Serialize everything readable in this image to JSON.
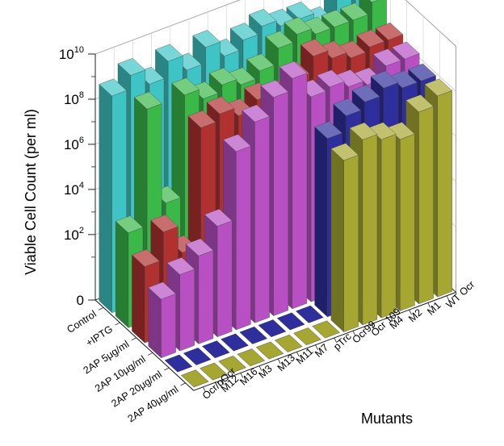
{
  "chart_data": {
    "type": "bar",
    "subtype": "3d-bar",
    "ylabel": "Viable Cell Count (per ml)",
    "xlabel": "Mutants",
    "yscale": "log",
    "ylim": [
      0,
      10000000000
    ],
    "grid": true,
    "legend": "none",
    "y_ticks": [
      {
        "base": "0",
        "exp": ""
      },
      {
        "base": "10",
        "exp": "2"
      },
      {
        "base": "10",
        "exp": "4"
      },
      {
        "base": "10",
        "exp": "6"
      },
      {
        "base": "10",
        "exp": "8"
      },
      {
        "base": "10",
        "exp": "10"
      }
    ],
    "treatments": [
      "Control",
      "+IPTG",
      "2AP 5μg/ml",
      "2AP 10μg/ml",
      "2AP 20μg/ml",
      "2AP 40μg/ml"
    ],
    "categories": [
      "Ocr/pOcr",
      "M12",
      "M16",
      "M3",
      "M13",
      "M11",
      "M7",
      "pTrc",
      "Ocr99",
      "Ocr 109",
      "M4",
      "M2",
      "M1",
      "WT Ocr"
    ],
    "series": [
      {
        "color": "#3ec4c4",
        "values": [
          500000000,
          2000000000,
          400000000,
          2000000000,
          400000000,
          2000000000,
          400000000,
          1000000000,
          2000000000,
          1000000000,
          1000000000,
          300000000,
          2000000000,
          1000000000
        ]
      },
      {
        "color": "#3ab848",
        "values": [
          2000,
          300000000,
          10000,
          300000000,
          100000000,
          200000000,
          100000000,
          200000000,
          1000000000,
          2000000000,
          1000000000,
          1000000000,
          1000000000,
          3000000000
        ]
      },
      {
        "color": "#b13030",
        "values": [
          300,
          5000,
          300,
          50000000,
          100000000,
          40000000,
          100000000,
          60000000,
          200000000,
          1000000000,
          400000000,
          200000000,
          300000000,
          300000000
        ]
      },
      {
        "color": "#b850c4",
        "values": [
          50,
          300,
          1000,
          10000,
          10000000,
          100000000,
          600000000,
          2000000000,
          150000000,
          200000000,
          100000000,
          60000000,
          200000000,
          200000000
        ]
      },
      {
        "color": "#2e2e9c",
        "values": [
          0,
          0,
          0,
          0,
          0,
          0,
          0,
          0,
          10000000,
          50000000,
          100000000,
          200000000,
          100000000,
          100000000
        ]
      },
      {
        "color": "#a6a632",
        "values": [
          0,
          0,
          0,
          0,
          0,
          0,
          0,
          0,
          5000000,
          20000000,
          10000000,
          5000000,
          40000000,
          100000000
        ]
      }
    ]
  }
}
